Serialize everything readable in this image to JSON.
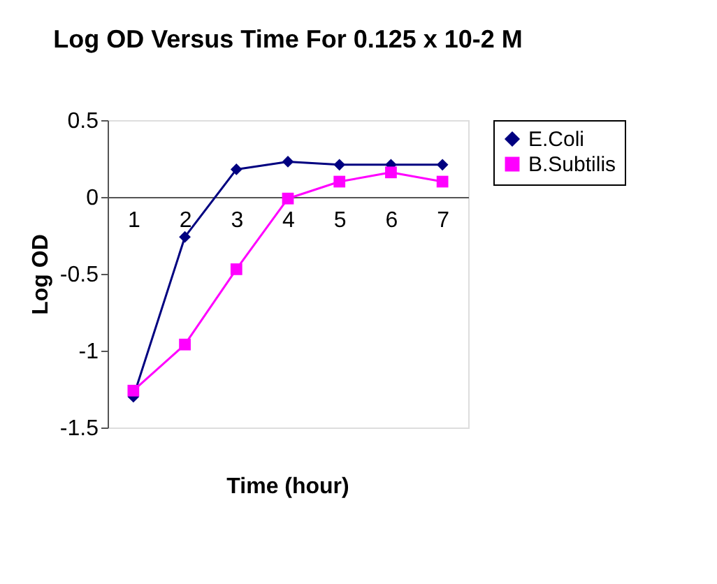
{
  "chart_data": {
    "type": "line",
    "title": "Log OD Versus Time For 0.125 x 10-2 M",
    "xlabel": "Time (hour)",
    "ylabel": "Log OD",
    "categories": [
      "1",
      "2",
      "3",
      "4",
      "5",
      "6",
      "7"
    ],
    "series": [
      {
        "name": "E.Coli",
        "color": "#000080",
        "marker": "diamond",
        "values": [
          -1.3,
          -0.26,
          0.18,
          0.23,
          0.21,
          0.21,
          0.21
        ]
      },
      {
        "name": "B.Subtilis",
        "color": "#ff00ff",
        "marker": "square",
        "values": [
          -1.26,
          -0.96,
          -0.47,
          -0.01,
          0.1,
          0.16,
          0.1
        ]
      }
    ],
    "ylim": [
      -1.5,
      0.5
    ],
    "yticks": [
      -1.5,
      -1,
      -0.5,
      0,
      0.5
    ],
    "grid": false,
    "legend": "right",
    "line_style": "solid"
  }
}
